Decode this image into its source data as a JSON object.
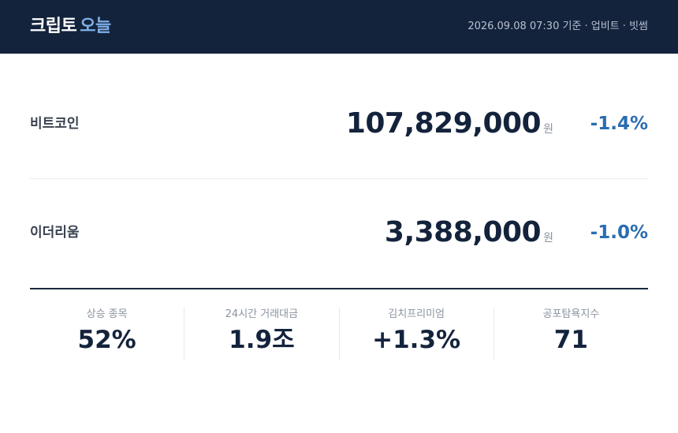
{
  "header": {
    "brand": "크립토",
    "brand_accent": "오늘",
    "meta": "2026.09.08 07:30 기준 · 업비트 · 빗썸"
  },
  "assets": [
    {
      "name": "비트코인",
      "price": "107,829,000",
      "unit": "원",
      "change": "-1.4%"
    },
    {
      "name": "이더리움",
      "price": "3,388,000",
      "unit": "원",
      "change": "-1.0%"
    }
  ],
  "stats": [
    {
      "label": "상승 종목",
      "value": "52%"
    },
    {
      "label": "24시간 거래대금",
      "value": "1.9조"
    },
    {
      "label": "김치프리미엄",
      "value": "+1.3%"
    },
    {
      "label": "공포탐욕지수",
      "value": "71"
    }
  ]
}
